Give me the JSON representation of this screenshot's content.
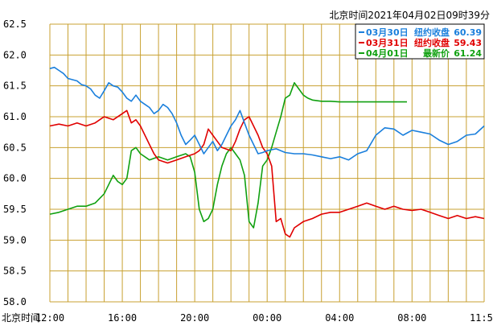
{
  "header": {
    "timestamp": "北京时间2021年04月02日09时39分"
  },
  "chart_data": {
    "type": "line",
    "title": "",
    "xlabel": "北京时间",
    "ylabel": "",
    "ylim": [
      58.0,
      62.5
    ],
    "y_ticks": [
      "62.5",
      "62.0",
      "61.5",
      "61.0",
      "60.5",
      "60.0",
      "59.5",
      "59.0",
      "58.5",
      "58.0"
    ],
    "x_ticks": [
      "12:00",
      "16:00",
      "20:00",
      "00:00",
      "04:00",
      "08:00",
      "11:59"
    ],
    "grid": true,
    "legend_position": "top-right",
    "series": [
      {
        "name": "03月30日",
        "label": "纽约收盘",
        "value": "60.39",
        "color": "#1a7fdc",
        "points": [
          [
            0,
            61.78
          ],
          [
            0.25,
            61.8
          ],
          [
            0.5,
            61.75
          ],
          [
            0.75,
            61.7
          ],
          [
            1,
            61.62
          ],
          [
            1.25,
            61.6
          ],
          [
            1.5,
            61.58
          ],
          [
            1.75,
            61.52
          ],
          [
            2,
            61.5
          ],
          [
            2.25,
            61.45
          ],
          [
            2.5,
            61.35
          ],
          [
            2.75,
            61.3
          ],
          [
            3,
            61.42
          ],
          [
            3.25,
            61.55
          ],
          [
            3.5,
            61.5
          ],
          [
            3.75,
            61.48
          ],
          [
            4,
            61.4
          ],
          [
            4.25,
            61.3
          ],
          [
            4.5,
            61.25
          ],
          [
            4.75,
            61.35
          ],
          [
            5,
            61.25
          ],
          [
            5.25,
            61.2
          ],
          [
            5.5,
            61.15
          ],
          [
            5.75,
            61.05
          ],
          [
            6,
            61.1
          ],
          [
            6.25,
            61.2
          ],
          [
            6.5,
            61.15
          ],
          [
            6.75,
            61.05
          ],
          [
            7,
            60.9
          ],
          [
            7.25,
            60.7
          ],
          [
            7.5,
            60.55
          ],
          [
            7.75,
            60.62
          ],
          [
            8,
            60.7
          ],
          [
            8.25,
            60.55
          ],
          [
            8.5,
            60.4
          ],
          [
            8.75,
            60.5
          ],
          [
            9,
            60.6
          ],
          [
            9.25,
            60.45
          ],
          [
            9.5,
            60.55
          ],
          [
            9.75,
            60.7
          ],
          [
            10,
            60.85
          ],
          [
            10.25,
            60.95
          ],
          [
            10.5,
            61.1
          ],
          [
            10.75,
            60.9
          ],
          [
            11,
            60.7
          ],
          [
            11.25,
            60.55
          ],
          [
            11.5,
            60.4
          ],
          [
            11.75,
            60.42
          ],
          [
            12,
            60.45
          ],
          [
            12.5,
            60.48
          ],
          [
            13,
            60.42
          ],
          [
            13.5,
            60.4
          ],
          [
            14,
            60.4
          ],
          [
            14.5,
            60.38
          ],
          [
            15,
            60.35
          ],
          [
            15.5,
            60.32
          ],
          [
            16,
            60.35
          ],
          [
            16.5,
            60.3
          ],
          [
            17,
            60.4
          ],
          [
            17.5,
            60.45
          ],
          [
            18,
            60.7
          ],
          [
            18.5,
            60.82
          ],
          [
            19,
            60.8
          ],
          [
            19.5,
            60.7
          ],
          [
            20,
            60.78
          ],
          [
            20.5,
            60.75
          ],
          [
            21,
            60.72
          ],
          [
            21.5,
            60.62
          ],
          [
            22,
            60.55
          ],
          [
            22.5,
            60.6
          ],
          [
            23,
            60.7
          ],
          [
            23.5,
            60.72
          ],
          [
            23.983,
            60.85
          ]
        ]
      },
      {
        "name": "03月31日",
        "label": "纽约收盘",
        "value": "59.43",
        "color": "#e00000",
        "points": [
          [
            0,
            60.85
          ],
          [
            0.5,
            60.88
          ],
          [
            1,
            60.85
          ],
          [
            1.5,
            60.9
          ],
          [
            2,
            60.85
          ],
          [
            2.5,
            60.9
          ],
          [
            3,
            61.0
          ],
          [
            3.5,
            60.95
          ],
          [
            4,
            61.05
          ],
          [
            4.25,
            61.1
          ],
          [
            4.5,
            60.9
          ],
          [
            4.75,
            60.95
          ],
          [
            5,
            60.85
          ],
          [
            5.25,
            60.7
          ],
          [
            5.5,
            60.55
          ],
          [
            5.75,
            60.4
          ],
          [
            6,
            60.3
          ],
          [
            6.5,
            60.25
          ],
          [
            7,
            60.3
          ],
          [
            7.5,
            60.35
          ],
          [
            8,
            60.4
          ],
          [
            8.25,
            60.45
          ],
          [
            8.5,
            60.55
          ],
          [
            8.75,
            60.8
          ],
          [
            9,
            60.7
          ],
          [
            9.5,
            60.5
          ],
          [
            10,
            60.45
          ],
          [
            10.25,
            60.6
          ],
          [
            10.5,
            60.8
          ],
          [
            10.75,
            60.95
          ],
          [
            11,
            61.0
          ],
          [
            11.25,
            60.85
          ],
          [
            11.5,
            60.7
          ],
          [
            11.75,
            60.5
          ],
          [
            12,
            60.4
          ],
          [
            12.25,
            60.2
          ],
          [
            12.5,
            59.3
          ],
          [
            12.75,
            59.35
          ],
          [
            13,
            59.1
          ],
          [
            13.25,
            59.05
          ],
          [
            13.5,
            59.2
          ],
          [
            13.75,
            59.25
          ],
          [
            14,
            59.3
          ],
          [
            14.5,
            59.35
          ],
          [
            15,
            59.42
          ],
          [
            15.5,
            59.45
          ],
          [
            16,
            59.45
          ],
          [
            16.5,
            59.5
          ],
          [
            17,
            59.55
          ],
          [
            17.5,
            59.6
          ],
          [
            18,
            59.55
          ],
          [
            18.5,
            59.5
          ],
          [
            19,
            59.55
          ],
          [
            19.5,
            59.5
          ],
          [
            20,
            59.48
          ],
          [
            20.5,
            59.5
          ],
          [
            21,
            59.45
          ],
          [
            21.5,
            59.4
          ],
          [
            22,
            59.35
          ],
          [
            22.5,
            59.4
          ],
          [
            23,
            59.35
          ],
          [
            23.5,
            59.38
          ],
          [
            23.983,
            59.35
          ]
        ]
      },
      {
        "name": "04月01日",
        "label": "最新价",
        "value": "61.24",
        "color": "#10a010",
        "points": [
          [
            0,
            59.42
          ],
          [
            0.5,
            59.45
          ],
          [
            1,
            59.5
          ],
          [
            1.5,
            59.55
          ],
          [
            2,
            59.55
          ],
          [
            2.5,
            59.6
          ],
          [
            3,
            59.75
          ],
          [
            3.25,
            59.9
          ],
          [
            3.5,
            60.05
          ],
          [
            3.75,
            59.95
          ],
          [
            4,
            59.9
          ],
          [
            4.25,
            60.0
          ],
          [
            4.5,
            60.45
          ],
          [
            4.75,
            60.5
          ],
          [
            5,
            60.4
          ],
          [
            5.5,
            60.3
          ],
          [
            6,
            60.35
          ],
          [
            6.5,
            60.3
          ],
          [
            7,
            60.35
          ],
          [
            7.5,
            60.4
          ],
          [
            7.75,
            60.35
          ],
          [
            8,
            60.1
          ],
          [
            8.25,
            59.5
          ],
          [
            8.5,
            59.3
          ],
          [
            8.75,
            59.35
          ],
          [
            9,
            59.5
          ],
          [
            9.25,
            59.9
          ],
          [
            9.5,
            60.2
          ],
          [
            9.75,
            60.4
          ],
          [
            10,
            60.5
          ],
          [
            10.25,
            60.4
          ],
          [
            10.5,
            60.3
          ],
          [
            10.75,
            60.05
          ],
          [
            11,
            59.3
          ],
          [
            11.25,
            59.2
          ],
          [
            11.5,
            59.6
          ],
          [
            11.75,
            60.2
          ],
          [
            12,
            60.3
          ],
          [
            12.25,
            60.5
          ],
          [
            12.5,
            60.75
          ],
          [
            12.75,
            61.0
          ],
          [
            13,
            61.3
          ],
          [
            13.25,
            61.35
          ],
          [
            13.5,
            61.55
          ],
          [
            13.75,
            61.45
          ],
          [
            14,
            61.35
          ],
          [
            14.25,
            61.3
          ],
          [
            14.5,
            61.27
          ],
          [
            15,
            61.25
          ],
          [
            15.5,
            61.25
          ],
          [
            16,
            61.24
          ],
          [
            16.5,
            61.24
          ],
          [
            17,
            61.24
          ],
          [
            17.5,
            61.24
          ],
          [
            18,
            61.24
          ],
          [
            18.5,
            61.24
          ],
          [
            19,
            61.24
          ],
          [
            19.5,
            61.24
          ],
          [
            19.72,
            61.24
          ]
        ]
      }
    ]
  }
}
